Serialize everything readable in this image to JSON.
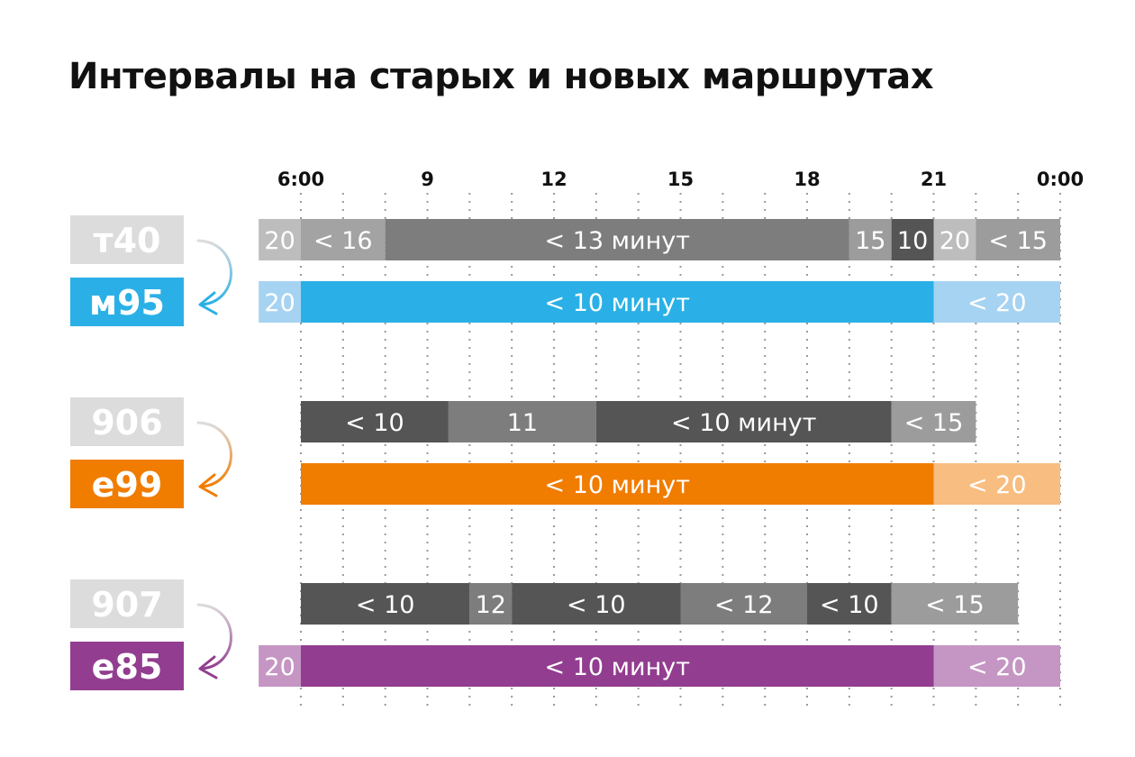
{
  "title": "Интервалы на старых и новых маршрутах",
  "chart_data": {
    "type": "bar",
    "title": "Интервалы на старых и новых маршрутах",
    "x_ticks": [
      "6:00",
      "9",
      "12",
      "15",
      "18",
      "21",
      "0:00"
    ],
    "x_tick_hours": [
      6,
      9,
      12,
      15,
      18,
      21,
      24
    ],
    "xlim": [
      5,
      24
    ],
    "groups": [
      {
        "old_route": "т40",
        "new_route": "м95",
        "new_color": "#2ab0e6",
        "old_segments": [
          {
            "start": 5,
            "end": 6,
            "label": "20",
            "color": "#bdbdbd"
          },
          {
            "start": 6,
            "end": 8,
            "label": "< 16",
            "color": "#a3a3a3"
          },
          {
            "start": 8,
            "end": 19,
            "label": "< 13 минут",
            "color": "#7d7d7d"
          },
          {
            "start": 19,
            "end": 20,
            "label": "15",
            "color": "#9c9c9c"
          },
          {
            "start": 20,
            "end": 21,
            "label": "10",
            "color": "#555555"
          },
          {
            "start": 21,
            "end": 22,
            "label": "20",
            "color": "#bdbdbd"
          },
          {
            "start": 22,
            "end": 24,
            "label": "< 15",
            "color": "#9c9c9c"
          }
        ],
        "new_segments": [
          {
            "start": 5,
            "end": 6,
            "label": "20",
            "color": "#a6d3f2"
          },
          {
            "start": 6,
            "end": 21,
            "label": "< 10 минут",
            "color": "#2ab0e6"
          },
          {
            "start": 21,
            "end": 24,
            "label": "< 20",
            "color": "#a6d3f2"
          }
        ]
      },
      {
        "old_route": "906",
        "new_route": "е99",
        "new_color": "#f07c00",
        "old_segments": [
          {
            "start": 6,
            "end": 9.5,
            "label": "< 10",
            "color": "#555555"
          },
          {
            "start": 9.5,
            "end": 13,
            "label": "11",
            "color": "#7d7d7d"
          },
          {
            "start": 13,
            "end": 20,
            "label": "< 10 минут",
            "color": "#555555"
          },
          {
            "start": 20,
            "end": 22,
            "label": "< 15",
            "color": "#9c9c9c"
          }
        ],
        "new_segments": [
          {
            "start": 6,
            "end": 21,
            "label": "< 10 минут",
            "color": "#f07c00"
          },
          {
            "start": 21,
            "end": 24,
            "label": "< 20",
            "color": "#f8bd80"
          }
        ]
      },
      {
        "old_route": "907",
        "new_route": "е85",
        "new_color": "#923d8f",
        "old_segments": [
          {
            "start": 6,
            "end": 10,
            "label": "< 10",
            "color": "#555555"
          },
          {
            "start": 10,
            "end": 11,
            "label": "12",
            "color": "#7d7d7d"
          },
          {
            "start": 11,
            "end": 15,
            "label": "< 10",
            "color": "#555555"
          },
          {
            "start": 15,
            "end": 18,
            "label": "< 12",
            "color": "#7d7d7d"
          },
          {
            "start": 18,
            "end": 20,
            "label": "< 10",
            "color": "#555555"
          },
          {
            "start": 20,
            "end": 23,
            "label": "< 15",
            "color": "#9c9c9c"
          }
        ],
        "new_segments": [
          {
            "start": 5,
            "end": 6,
            "label": "20",
            "color": "#c596c4"
          },
          {
            "start": 6,
            "end": 21,
            "label": "< 10 минут",
            "color": "#923d8f"
          },
          {
            "start": 21,
            "end": 24,
            "label": "< 20",
            "color": "#c596c4"
          }
        ]
      }
    ],
    "grid": true,
    "legend": "none"
  }
}
